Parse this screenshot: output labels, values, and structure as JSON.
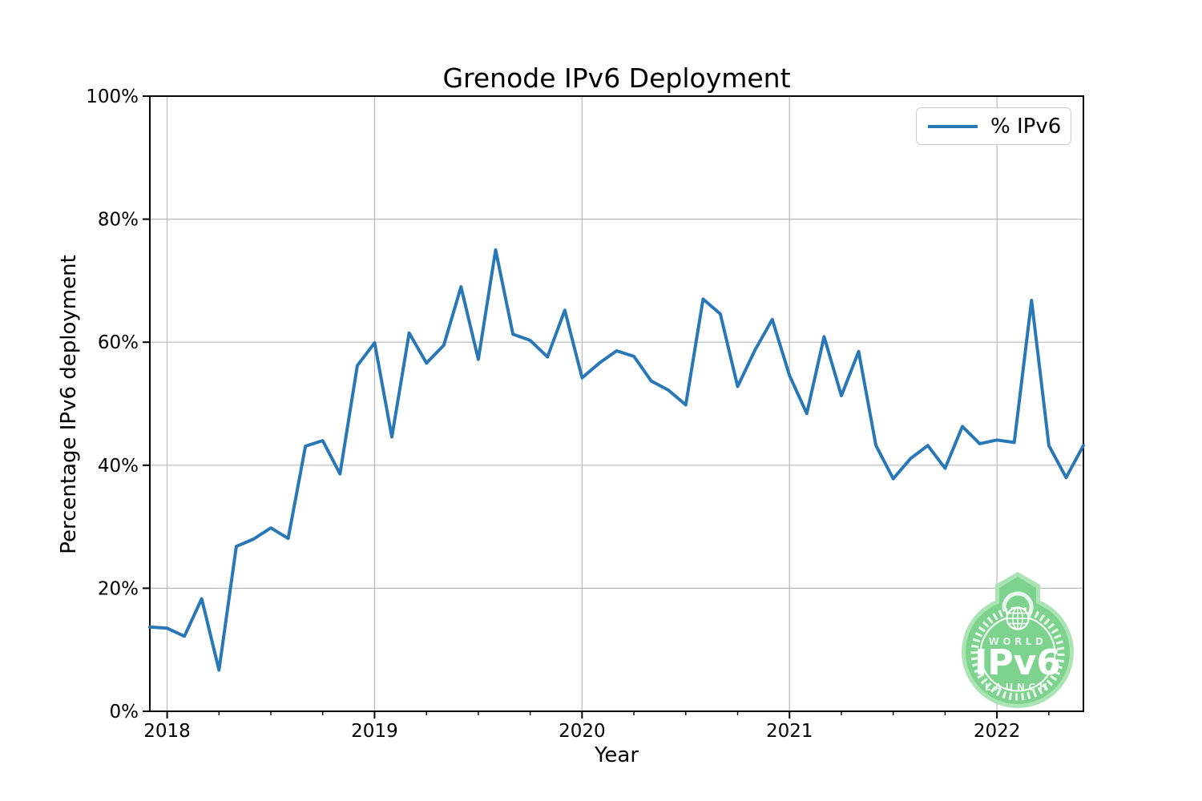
{
  "figure": {
    "title": "Grenode IPv6 Deployment",
    "xlabel": "Year",
    "ylabel": "Percentage IPv6 deployment"
  },
  "legend": {
    "series_label": "% IPv6"
  },
  "badge": {
    "word_top": "WORLD",
    "word_main": "IPv6",
    "word_bottom": "LAUNCH",
    "green": "#7dd38e",
    "green_light": "#a9e4b2"
  },
  "chart_data": {
    "type": "line",
    "title": "Grenode IPv6 Deployment",
    "xlabel": "Year",
    "ylabel": "Percentage IPv6 deployment",
    "grid": true,
    "legend_position": "upper right",
    "ylim": [
      0,
      100
    ],
    "y_ticks": [
      0,
      20,
      40,
      60,
      80,
      100
    ],
    "y_tick_labels": [
      "0%",
      "20%",
      "40%",
      "60%",
      "80%",
      "100%"
    ],
    "x_ticks": [
      2018,
      2019,
      2020,
      2021,
      2022
    ],
    "x_minor_tick_interval_years": 0.25,
    "xlim_years": [
      2017.9167,
      2022.4167
    ],
    "line_color": "#2878b8",
    "line_width": 4,
    "grid_color": "#b8b8b8",
    "series": [
      {
        "name": "% IPv6",
        "frequency": "monthly",
        "start_month": "2017-12",
        "end_month": "2022-06",
        "values": [
          13.7,
          13.5,
          12.2,
          18.3,
          6.7,
          26.8,
          28.0,
          29.8,
          28.1,
          43.1,
          44.0,
          38.6,
          56.2,
          59.9,
          44.6,
          61.5,
          56.6,
          59.5,
          69.0,
          57.2,
          75.0,
          61.3,
          60.3,
          57.6,
          65.2,
          54.2,
          56.6,
          58.6,
          57.7,
          53.7,
          52.2,
          49.8,
          67.0,
          64.6,
          52.8,
          58.7,
          63.7,
          54.6,
          48.4,
          60.9,
          51.3,
          58.5,
          43.2,
          37.8,
          41.1,
          43.2,
          39.5,
          46.3,
          43.5,
          44.1,
          43.7,
          66.8,
          43.2,
          38.0,
          43.2
        ]
      }
    ]
  }
}
